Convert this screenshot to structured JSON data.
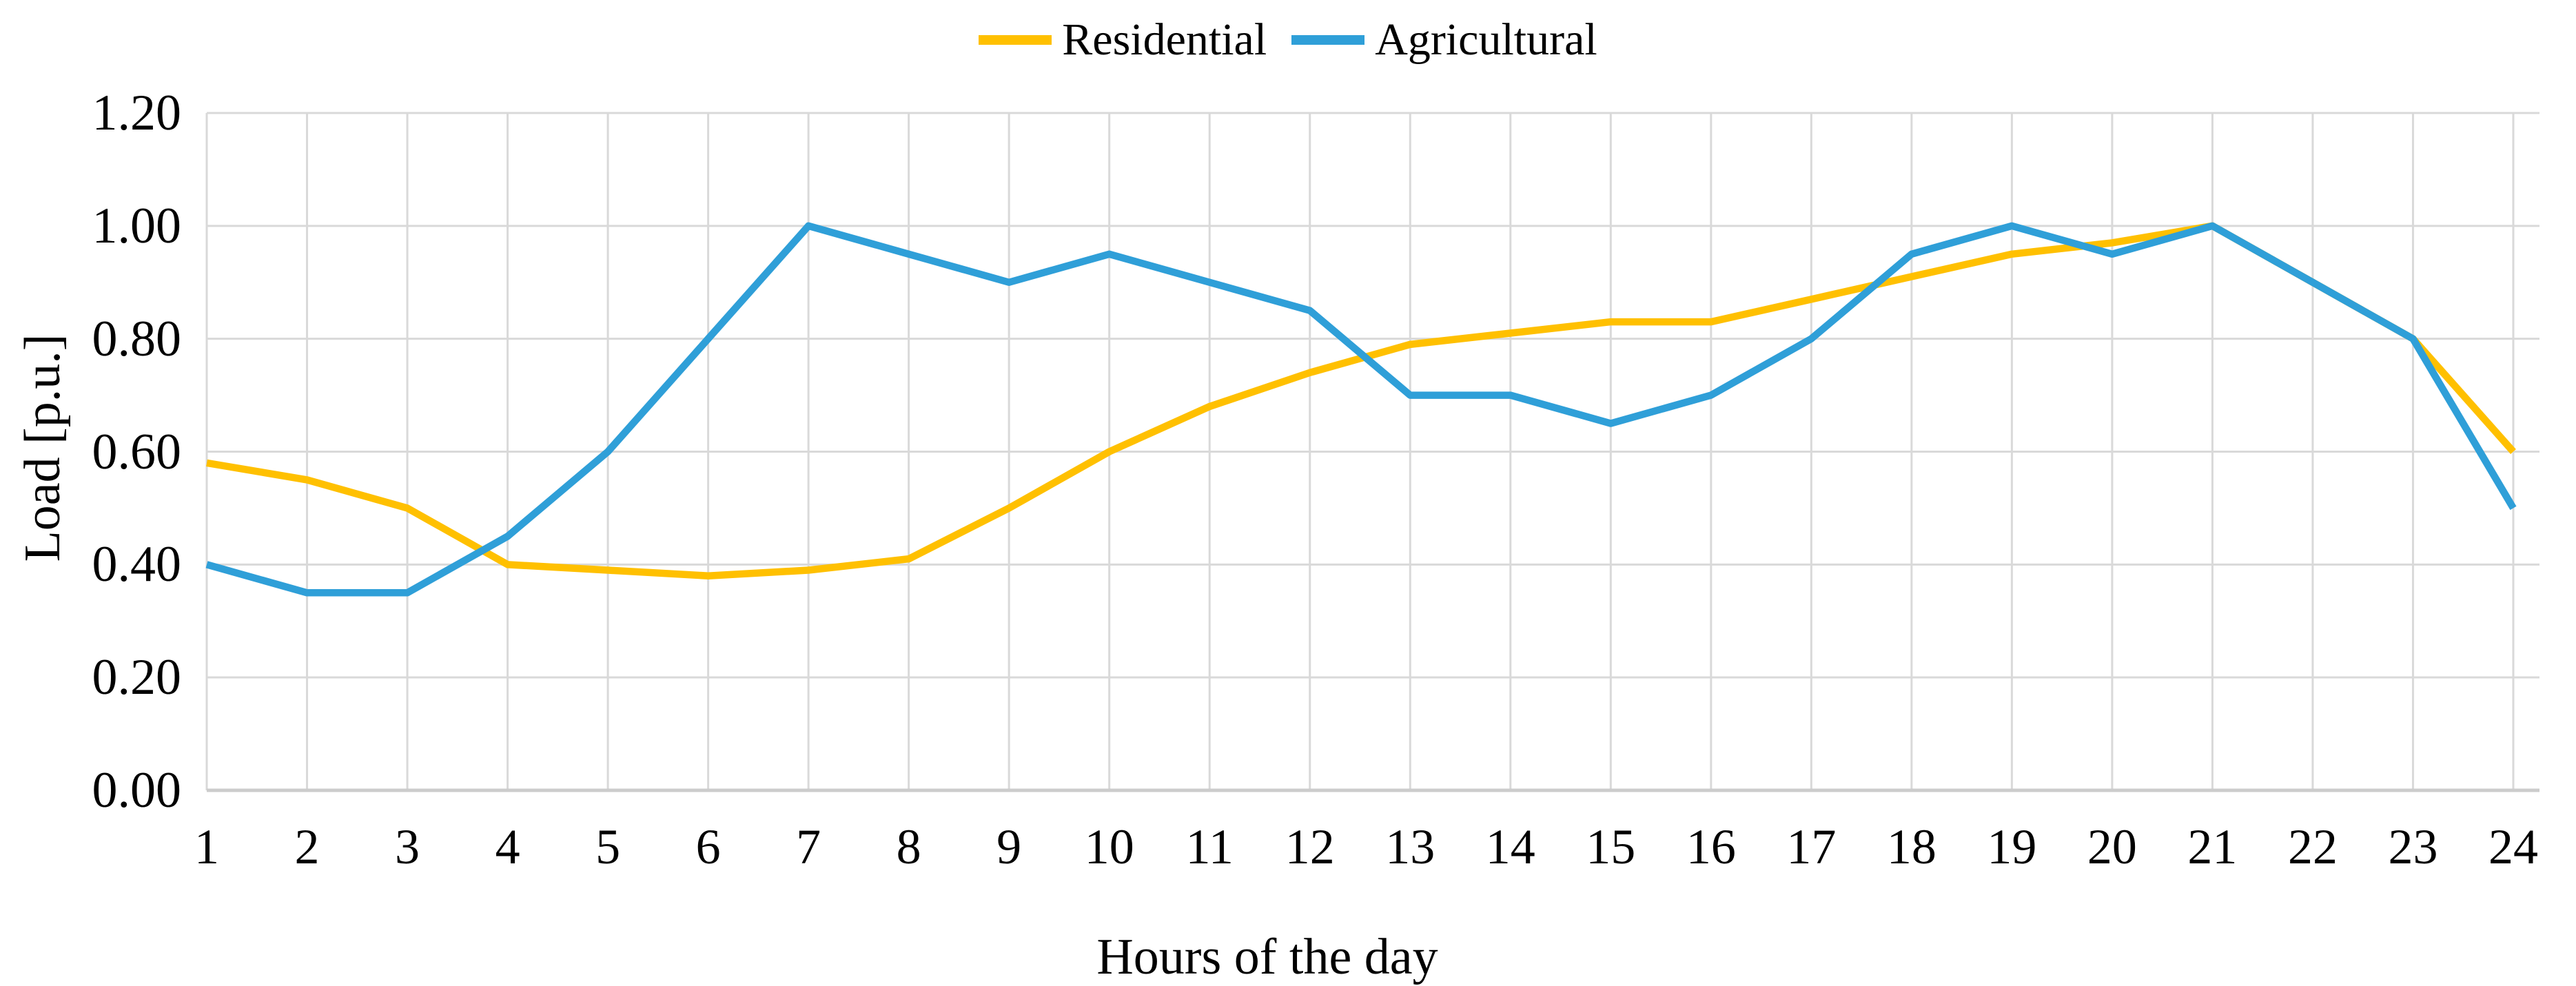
{
  "page": {
    "background": "#FFFFFF"
  },
  "chart_data": {
    "type": "line",
    "title": "",
    "xlabel": "Hours of the day",
    "ylabel": "Load [p.u.]",
    "categories": [
      "1",
      "2",
      "3",
      "4",
      "5",
      "6",
      "7",
      "8",
      "9",
      "10",
      "11",
      "12",
      "13",
      "14",
      "15",
      "16",
      "17",
      "18",
      "19",
      "20",
      "21",
      "22",
      "23",
      "24"
    ],
    "ylim": [
      0,
      1.2
    ],
    "yticks": [
      {
        "value": 0.0,
        "label": "0.00"
      },
      {
        "value": 0.2,
        "label": "0.20"
      },
      {
        "value": 0.4,
        "label": "0.40"
      },
      {
        "value": 0.6,
        "label": "0.60"
      },
      {
        "value": 0.8,
        "label": "0.80"
      },
      {
        "value": 1.0,
        "label": "1.00"
      },
      {
        "value": 1.2,
        "label": "1.20"
      }
    ],
    "grid": "both",
    "legend_position": "top-center",
    "colors": {
      "grid": "#D9D9D9",
      "axis": "#CCCCCC",
      "text": "#000000"
    },
    "series": [
      {
        "name": "Residential",
        "color": "#FFC000",
        "values": [
          0.58,
          0.55,
          0.5,
          0.4,
          0.39,
          0.38,
          0.39,
          0.41,
          0.5,
          0.6,
          0.68,
          0.74,
          0.79,
          0.81,
          0.83,
          0.83,
          0.87,
          0.91,
          0.95,
          0.97,
          1.0,
          0.9,
          0.8,
          0.6
        ]
      },
      {
        "name": "Agricultural",
        "color": "#2F9FD8",
        "values": [
          0.4,
          0.35,
          0.35,
          0.45,
          0.6,
          0.8,
          1.0,
          0.95,
          0.9,
          0.95,
          0.9,
          0.85,
          0.7,
          0.7,
          0.65,
          0.7,
          0.8,
          0.95,
          1.0,
          0.95,
          1.0,
          0.9,
          0.8,
          0.5
        ]
      }
    ]
  }
}
